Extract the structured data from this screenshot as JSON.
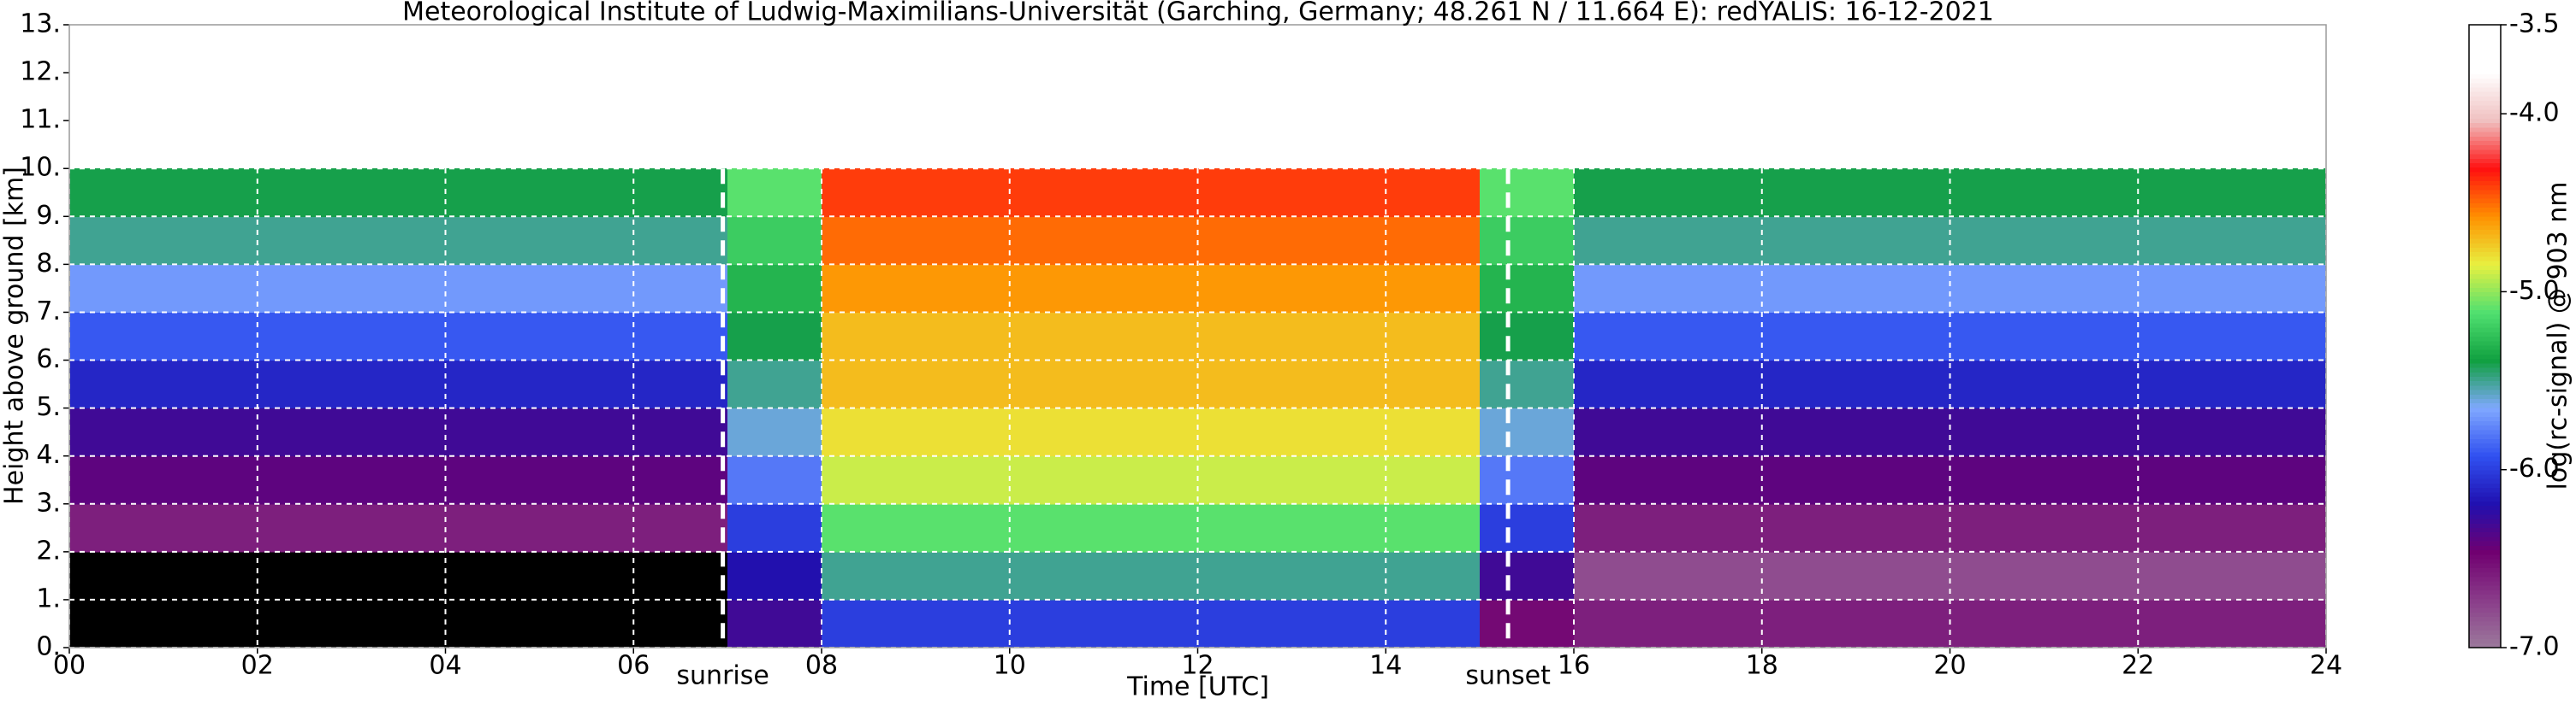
{
  "chart_data": {
    "type": "heatmap",
    "title": "Meteorological Institute of Ludwig-Maximilians-Universität (Garching, Germany; 48.261 N / 11.664 E):    redYALIS: 16-12-2021",
    "xlabel": "Time [UTC]",
    "ylabel": "Height above ground [km]",
    "colorbar_label": "log(rc-signal) @ 903 nm",
    "xlim": [
      0,
      24
    ],
    "xticks": [
      {
        "value": 0,
        "label": "00"
      },
      {
        "value": 2,
        "label": "02"
      },
      {
        "value": 4,
        "label": "04"
      },
      {
        "value": 6,
        "label": "06"
      },
      {
        "value": 8,
        "label": "08"
      },
      {
        "value": 10,
        "label": "10"
      },
      {
        "value": 12,
        "label": "12"
      },
      {
        "value": 14,
        "label": "14"
      },
      {
        "value": 16,
        "label": "16"
      },
      {
        "value": 18,
        "label": "18"
      },
      {
        "value": 20,
        "label": "20"
      },
      {
        "value": 22,
        "label": "22"
      },
      {
        "value": 24,
        "label": "24"
      }
    ],
    "ylim": [
      0,
      13
    ],
    "yticks": [
      {
        "value": 0,
        "label": "0."
      },
      {
        "value": 1,
        "label": "1."
      },
      {
        "value": 2,
        "label": "2."
      },
      {
        "value": 3,
        "label": "3."
      },
      {
        "value": 4,
        "label": "4."
      },
      {
        "value": 5,
        "label": "5."
      },
      {
        "value": 6,
        "label": "6."
      },
      {
        "value": 7,
        "label": "7."
      },
      {
        "value": 8,
        "label": "8."
      },
      {
        "value": 9,
        "label": "9."
      },
      {
        "value": 10,
        "label": "10."
      },
      {
        "value": 11,
        "label": "11."
      },
      {
        "value": 12,
        "label": "12."
      },
      {
        "value": 13,
        "label": "13."
      }
    ],
    "zlim": [
      -7.0,
      -3.5
    ],
    "zticks": [
      {
        "value": -7,
        "label": "-7.0"
      },
      {
        "value": -6,
        "label": "-6.0"
      },
      {
        "value": -5,
        "label": "-5.0"
      },
      {
        "value": -4,
        "label": "-4.0"
      },
      -3.5
    ],
    "colormap": [
      "#9c7a9c",
      "#8a3c8a",
      "#700070",
      "#2010b0",
      "#3050f0",
      "#80a8ff",
      "#10a040",
      "#50e070",
      "#e8f040",
      "#ff9000",
      "#ff1010",
      "#f0c0c0",
      "#ffffff",
      "#ffffff"
    ],
    "under_color": "#000000",
    "grid": true,
    "grid_color": "#ffffff",
    "x_bins": [
      0,
      1,
      2,
      3,
      4,
      5,
      6,
      7,
      8,
      9,
      10,
      11,
      12,
      13,
      14,
      15,
      16,
      17,
      18,
      19,
      20,
      21,
      22,
      23,
      24
    ],
    "y_bins": [
      0,
      1,
      2,
      3,
      4,
      5,
      6,
      7,
      8,
      9,
      10
    ],
    "z": [
      [
        -7.3,
        -7.3,
        -7.3,
        -7.3,
        -7.3,
        -7.3,
        -7.3,
        -6.3,
        -6.0,
        -6.0,
        -6.0,
        -6.0,
        -6.0,
        -6.0,
        -6.0,
        -6.5,
        -6.6,
        -6.6,
        -6.6,
        -6.6,
        -6.6,
        -6.6,
        -6.6,
        -6.6
      ],
      [
        -7.1,
        -7.1,
        -7.1,
        -7.1,
        -7.1,
        -7.1,
        -7.1,
        -6.2,
        -5.5,
        -5.5,
        -5.5,
        -5.5,
        -5.5,
        -5.5,
        -5.5,
        -6.3,
        -6.8,
        -6.8,
        -6.8,
        -6.8,
        -6.8,
        -6.8,
        -6.8,
        -6.8
      ],
      [
        -6.6,
        -6.6,
        -6.6,
        -6.6,
        -6.6,
        -6.6,
        -6.6,
        -6.0,
        -5.1,
        -5.1,
        -5.1,
        -5.1,
        -5.1,
        -5.1,
        -5.1,
        -6.0,
        -6.6,
        -6.6,
        -6.6,
        -6.6,
        -6.6,
        -6.6,
        -6.6,
        -6.6
      ],
      [
        -6.4,
        -6.4,
        -6.4,
        -6.4,
        -6.4,
        -6.4,
        -6.4,
        -5.8,
        -4.9,
        -4.9,
        -4.9,
        -4.9,
        -4.9,
        -4.9,
        -4.9,
        -5.8,
        -6.4,
        -6.4,
        -6.4,
        -6.4,
        -6.4,
        -6.4,
        -6.4,
        -6.4
      ],
      [
        -6.3,
        -6.3,
        -6.3,
        -6.3,
        -6.3,
        -6.3,
        -6.3,
        -5.6,
        -4.8,
        -4.8,
        -4.8,
        -4.8,
        -4.8,
        -4.8,
        -4.8,
        -5.6,
        -6.3,
        -6.3,
        -6.3,
        -6.3,
        -6.3,
        -6.3,
        -6.3,
        -6.3
      ],
      [
        -6.1,
        -6.1,
        -6.1,
        -6.1,
        -6.1,
        -6.1,
        -6.1,
        -5.5,
        -4.7,
        -4.7,
        -4.7,
        -4.7,
        -4.7,
        -4.7,
        -4.7,
        -5.5,
        -6.1,
        -6.1,
        -6.1,
        -6.1,
        -6.1,
        -6.1,
        -6.1,
        -6.1
      ],
      [
        -5.9,
        -5.9,
        -5.9,
        -5.9,
        -5.9,
        -5.9,
        -5.9,
        -5.4,
        -4.7,
        -4.7,
        -4.7,
        -4.7,
        -4.7,
        -4.7,
        -4.7,
        -5.4,
        -5.9,
        -5.9,
        -5.9,
        -5.9,
        -5.9,
        -5.9,
        -5.9,
        -5.9
      ],
      [
        -5.7,
        -5.7,
        -5.7,
        -5.7,
        -5.7,
        -5.7,
        -5.7,
        -5.3,
        -4.6,
        -4.6,
        -4.6,
        -4.6,
        -4.6,
        -4.6,
        -4.6,
        -5.3,
        -5.7,
        -5.7,
        -5.7,
        -5.7,
        -5.7,
        -5.7,
        -5.7,
        -5.7
      ],
      [
        -5.5,
        -5.5,
        -5.5,
        -5.5,
        -5.5,
        -5.5,
        -5.5,
        -5.2,
        -4.5,
        -4.5,
        -4.5,
        -4.5,
        -4.5,
        -4.5,
        -4.5,
        -5.2,
        -5.5,
        -5.5,
        -5.5,
        -5.5,
        -5.5,
        -5.5,
        -5.5,
        -5.5
      ],
      [
        -5.4,
        -5.4,
        -5.4,
        -5.4,
        -5.4,
        -5.4,
        -5.4,
        -5.1,
        -4.4,
        -4.4,
        -4.4,
        -4.4,
        -4.4,
        -4.4,
        -4.4,
        -5.1,
        -5.4,
        -5.4,
        -5.4,
        -5.4,
        -5.4,
        -5.4,
        -5.4,
        -5.4
      ]
    ],
    "annotations": [
      {
        "x": 6.95,
        "label": "sunrise"
      },
      {
        "x": 15.3,
        "label": "sunset"
      }
    ]
  }
}
